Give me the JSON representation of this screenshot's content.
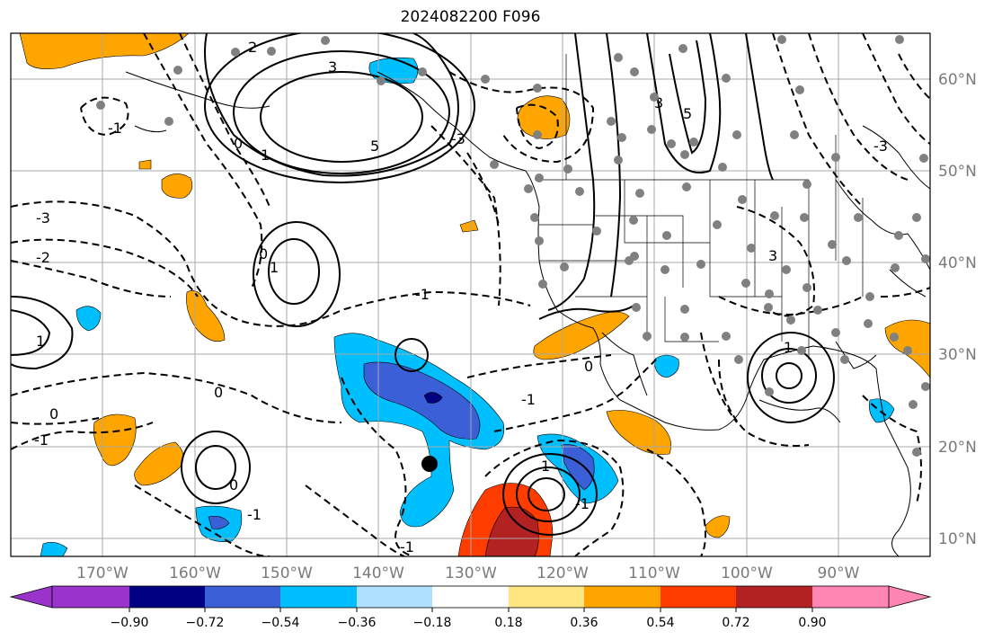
{
  "title": "2024082200 F096",
  "map": {
    "lat_labels": [
      {
        "text": "60°N",
        "lat": 60
      },
      {
        "text": "50°N",
        "lat": 50
      },
      {
        "text": "40°N",
        "lat": 40
      },
      {
        "text": "30°N",
        "lat": 30
      },
      {
        "text": "20°N",
        "lat": 20
      },
      {
        "text": "10°N",
        "lat": 10
      }
    ],
    "lon_labels": [
      {
        "text": "170°W",
        "lon": -170
      },
      {
        "text": "160°W",
        "lon": -160
      },
      {
        "text": "150°W",
        "lon": -150
      },
      {
        "text": "140°W",
        "lon": -140
      },
      {
        "text": "130°W",
        "lon": -130
      },
      {
        "text": "120°W",
        "lon": -120
      },
      {
        "text": "110°W",
        "lon": -110
      },
      {
        "text": "100°W",
        "lon": -100
      },
      {
        "text": "90°W",
        "lon": -90
      }
    ],
    "contour_labels": [
      "2",
      "3",
      "-1",
      "0",
      "1",
      "5",
      "-3",
      "-2",
      "-1",
      "0",
      "1",
      "3",
      "5",
      "-3",
      "1",
      "-1",
      "0",
      "-1",
      "0",
      "1",
      "-1",
      "0",
      "-1",
      "-1",
      "3",
      "-3",
      "1",
      "0"
    ]
  },
  "colorbar": {
    "colors": [
      "#9a33cc",
      "#000080",
      "#3b5fd6",
      "#00bfff",
      "#b0e0ff",
      "#ffffff",
      "#ffe680",
      "#ffa500",
      "#ff3c00",
      "#b22222",
      "#ff85b3"
    ],
    "tick_labels": [
      "−0.90",
      "−0.72",
      "−0.54",
      "−0.36",
      "−0.18",
      "0.18",
      "0.36",
      "0.54",
      "0.72",
      "0.90"
    ]
  }
}
